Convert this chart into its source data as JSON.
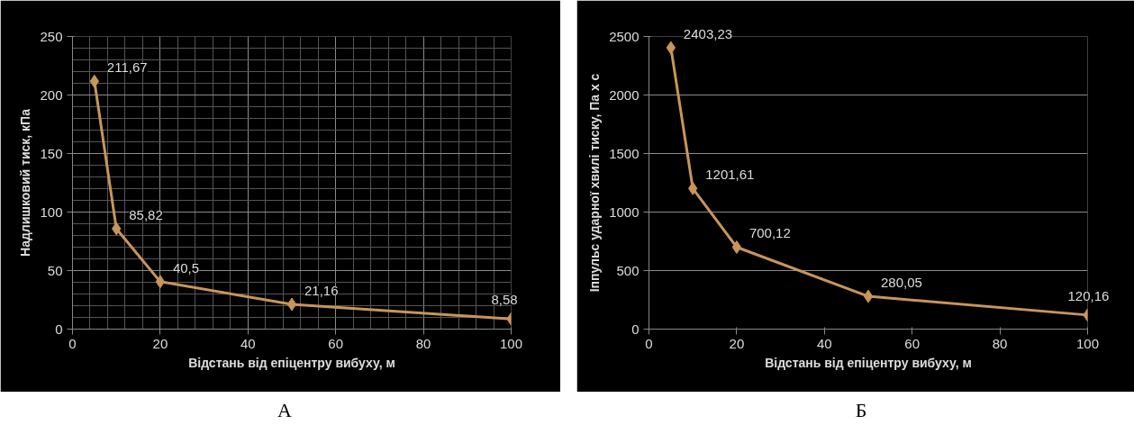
{
  "chart_data": [
    {
      "type": "line",
      "xlabel": "Відстань від епіцентру вибуху, м",
      "ylabel": "Надлишковий тиск, кПа",
      "x": [
        5,
        10,
        20,
        50,
        100
      ],
      "xlim": [
        0,
        100
      ],
      "xticks": [
        0,
        20,
        40,
        60,
        80,
        100
      ],
      "ylim": [
        0,
        250
      ],
      "yticks": [
        0,
        50,
        100,
        150,
        200,
        250
      ],
      "series": [
        {
          "color": "#c8955a",
          "values": [
            211.67,
            85.82,
            40.5,
            21.16,
            8.58
          ],
          "value_labels": [
            "211,67",
            "85,82",
            "40,5",
            "21,16",
            "8,58"
          ]
        }
      ],
      "marker": "diamond",
      "grid": true,
      "annotations": [
        "А"
      ]
    },
    {
      "type": "line",
      "xlabel": "Відстань від епіцентру вибуху, м",
      "ylabel": "Іппульс ударної хвилі тиску, Па х с",
      "x": [
        5,
        10,
        20,
        50,
        100
      ],
      "xlim": [
        0,
        100
      ],
      "xticks": [
        0,
        20,
        40,
        60,
        80,
        100
      ],
      "ylim": [
        0,
        2500
      ],
      "yticks": [
        0,
        500,
        1000,
        1500,
        2000,
        2500
      ],
      "series": [
        {
          "color": "#c8955a",
          "values": [
            2403.23,
            1201.61,
            700.12,
            280.05,
            120.16
          ],
          "value_labels": [
            "2403,23",
            "1201,61",
            "700,12",
            "280,05",
            "120,16"
          ]
        }
      ],
      "marker": "diamond",
      "grid": "y",
      "annotations": [
        "Б"
      ]
    }
  ]
}
